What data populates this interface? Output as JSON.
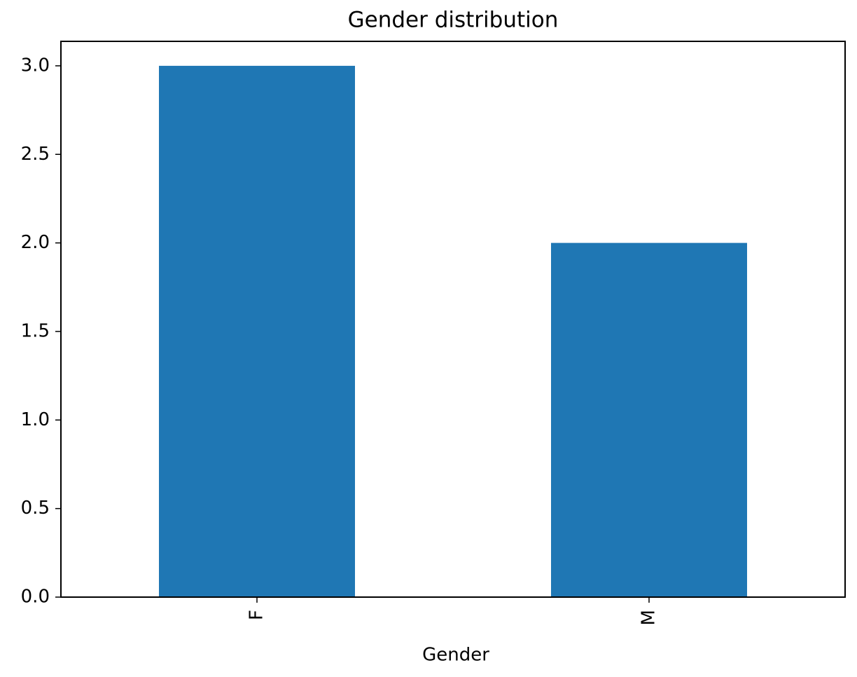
{
  "chart_data": {
    "type": "bar",
    "title": "Gender distribution",
    "x_label": "Gender",
    "categories": [
      "F",
      "M"
    ],
    "values": [
      3,
      2
    ],
    "color": "#1f77b4",
    "ylim": [
      0,
      3.15
    ],
    "yticks": [
      {
        "value": 0,
        "label": "0.0"
      },
      {
        "value": 0.5,
        "label": "0.5"
      },
      {
        "value": 1,
        "label": "1.0"
      },
      {
        "value": 1.5,
        "label": "1.5"
      },
      {
        "value": 2,
        "label": "2.0"
      },
      {
        "value": 2.5,
        "label": "2.5"
      },
      {
        "value": 3,
        "label": "3.0"
      }
    ],
    "grid": false
  }
}
